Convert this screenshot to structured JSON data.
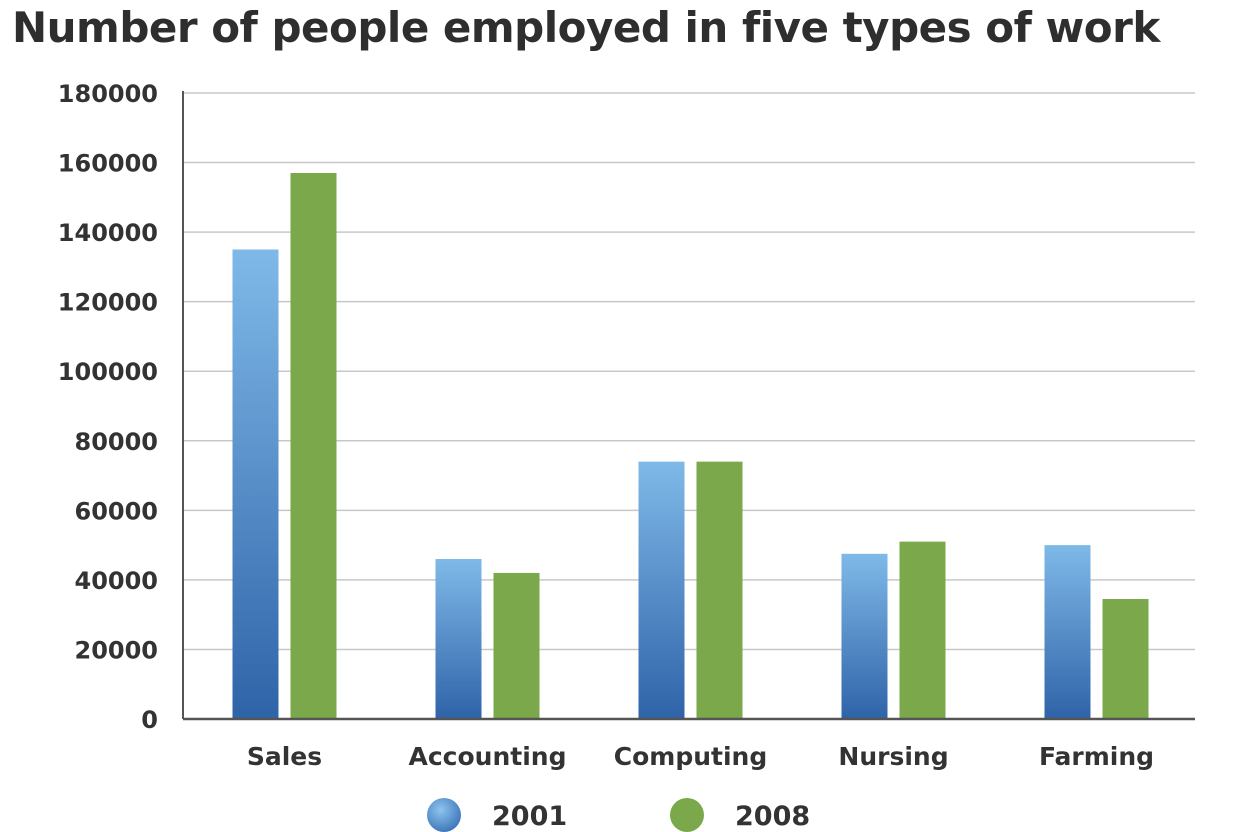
{
  "chart_data": {
    "type": "bar",
    "title": "Number of people employed in five types of work",
    "xlabel": "",
    "ylabel": "",
    "categories": [
      "Sales",
      "Accounting",
      "Computing",
      "Nursing",
      "Farming"
    ],
    "series": [
      {
        "name": "2001",
        "values": [
          135000,
          46000,
          74000,
          47500,
          50000
        ],
        "color": "#4a86c8",
        "color_top": "#7fb9e8",
        "color_bottom": "#2f63a8"
      },
      {
        "name": "2008",
        "values": [
          157000,
          42000,
          74000,
          51000,
          34500
        ],
        "color": "#7aa84a"
      }
    ],
    "ylim": [
      0,
      180000
    ],
    "yticks": [
      0,
      20000,
      40000,
      60000,
      80000,
      100000,
      120000,
      140000,
      160000,
      180000
    ],
    "ytick_labels": [
      "0",
      "20000",
      "40000",
      "60000",
      "80000",
      "100000",
      "120000",
      "140000",
      "160000",
      "180000"
    ],
    "grid": true,
    "legend_position": "bottom"
  }
}
